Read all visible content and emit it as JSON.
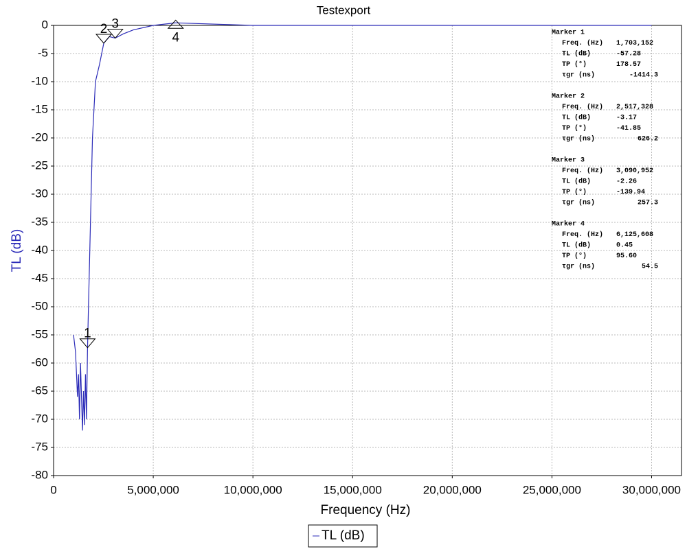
{
  "chart_data": {
    "type": "line",
    "title": "Testexport",
    "xlabel": "Frequency (Hz)",
    "ylabel": "TL (dB)",
    "xlim": [
      0,
      31500000
    ],
    "ylim": [
      -80,
      0
    ],
    "xticks": [
      0,
      {
        "value": 5000000,
        "label": "5,000,000"
      },
      {
        "value": 10000000,
        "label": "10,000,000"
      },
      {
        "value": 15000000,
        "label": "15,000,000"
      },
      {
        "value": 20000000,
        "label": "20,000,000"
      },
      {
        "value": 25000000,
        "label": "25,000,000"
      },
      {
        "value": 30000000,
        "label": "30,000,000"
      }
    ],
    "yticks": [
      0,
      -5,
      -10,
      -15,
      -20,
      -25,
      -30,
      -35,
      -40,
      -45,
      -50,
      -55,
      -60,
      -65,
      -70,
      -75,
      -80
    ],
    "grid": true,
    "series": [
      {
        "name": "TL (dB)",
        "color": "#2b2bb8",
        "x": [
          1000000,
          1100000,
          1200000,
          1250000,
          1300000,
          1350000,
          1450000,
          1500000,
          1550000,
          1600000,
          1650000,
          1703152,
          1750000,
          1850000,
          1950000,
          2100000,
          2300000,
          2517328,
          2800000,
          3090952,
          3500000,
          4000000,
          5000000,
          6125608,
          10000000,
          20000000,
          30000000
        ],
        "values": [
          -55,
          -58,
          -66,
          -62,
          -70,
          -60,
          -72,
          -65,
          -71,
          -62,
          -70,
          -57.28,
          -50,
          -35,
          -20,
          -10,
          -7,
          -3.17,
          -2,
          -2.26,
          -1.5,
          -0.8,
          0,
          0.45,
          0,
          0,
          0
        ]
      }
    ],
    "marker_fields": [
      "Freq. (Hz)",
      "TL (dB)",
      "TP (°)",
      "τgr (ns)"
    ],
    "markers": [
      {
        "name": "Marker 1",
        "label": "1",
        "freq": {
          "value": 1703152,
          "label": "1,703,152"
        },
        "tl": -57.28,
        "tp": 178.57,
        "tgr": -1414.3
      },
      {
        "name": "Marker 2",
        "label": "2",
        "freq": {
          "value": 2517328,
          "label": "2,517,328"
        },
        "tl": -3.17,
        "tp": -41.85,
        "tgr": 626.2
      },
      {
        "name": "Marker 3",
        "label": "3",
        "freq": {
          "value": 3090952,
          "label": "3,090,952"
        },
        "tl": -2.26,
        "tp": -139.94,
        "tgr": 257.3
      },
      {
        "name": "Marker 4",
        "label": "4",
        "freq": {
          "value": 6125608,
          "label": "6,125,608"
        },
        "tl": 0.45,
        "tp": {
          "value": 95.6,
          "label": "95.60"
        },
        "tgr": 54.5
      }
    ]
  }
}
